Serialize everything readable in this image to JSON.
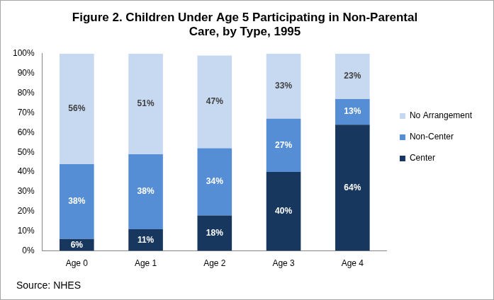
{
  "chart_data": {
    "type": "bar",
    "title": [
      "Figure 2. Children Under Age 5 Participating in Non-Parental",
      "Care, by Type, 1995"
    ],
    "annotation": "Source: NHES",
    "categories": [
      "Age 0",
      "Age 1",
      "Age 2",
      "Age 3",
      "Age 4"
    ],
    "series": [
      {
        "name": "Center",
        "color": "#17375e",
        "values": [
          6,
          11,
          18,
          40,
          64
        ],
        "value_labels": [
          "6%",
          "11%",
          "18%",
          "40%",
          "64%"
        ]
      },
      {
        "name": "Non-Center",
        "color": "#558ed5",
        "values": [
          38,
          38,
          34,
          27,
          13
        ],
        "value_labels": [
          "38%",
          "38%",
          "34%",
          "27%",
          "13%"
        ]
      },
      {
        "name": "No Arrangement",
        "color": "#c6d9f1",
        "values": [
          56,
          51,
          47,
          33,
          23
        ],
        "value_labels": [
          "56%",
          "51%",
          "47%",
          "33%",
          "23%"
        ]
      }
    ],
    "stacked": true,
    "data_labels": true,
    "legend": "right",
    "grid": false,
    "ylim": [
      0,
      100
    ],
    "yticks": [
      {
        "value": 0,
        "label": "0%"
      },
      {
        "value": 10,
        "label": "10%"
      },
      {
        "value": 20,
        "label": "20%"
      },
      {
        "value": 30,
        "label": "30%"
      },
      {
        "value": 40,
        "label": "40%"
      },
      {
        "value": 50,
        "label": "50%"
      },
      {
        "value": 60,
        "label": "60%"
      },
      {
        "value": 70,
        "label": "70%"
      },
      {
        "value": 80,
        "label": "80%"
      },
      {
        "value": 90,
        "label": "90%"
      },
      {
        "value": 100,
        "label": "100%"
      }
    ]
  }
}
